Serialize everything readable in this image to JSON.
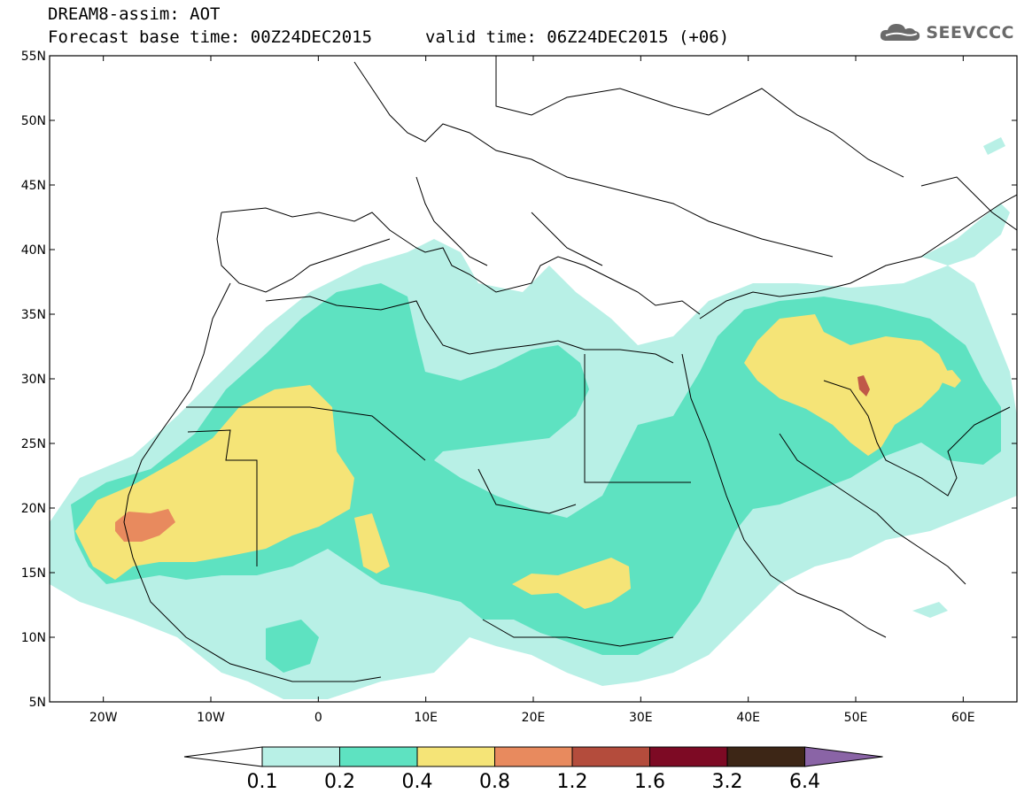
{
  "header": {
    "line1": "DREAM8-assim: AOT",
    "base_time": "Forecast base time: 00Z24DEC2015",
    "valid_time": "valid time: 06Z24DEC2015 (+06)"
  },
  "logo": {
    "text": "SEEVCCC",
    "icon": "cloud-icon"
  },
  "map": {
    "lon_range": [
      -25,
      65
    ],
    "lat_range": [
      5,
      55
    ],
    "lat_labels": [
      "55N",
      "50N",
      "45N",
      "40N",
      "35N",
      "30N",
      "25N",
      "20N",
      "15N",
      "10N",
      "5N"
    ],
    "lon_labels": [
      "20W",
      "10W",
      "0",
      "10E",
      "20E",
      "30E",
      "40E",
      "50E",
      "60E"
    ]
  },
  "legend": {
    "levels": [
      "0.1",
      "0.2",
      "0.4",
      "0.8",
      "1.2",
      "1.6",
      "3.2",
      "6.4"
    ],
    "colors": [
      "#b8f0e6",
      "#5ee2c1",
      "#f5e477",
      "#e88a5e",
      "#b44c3c",
      "#7d0a24",
      "#3d2616",
      "#8a64a6"
    ],
    "start_arrow_color": "#ffffff",
    "end_arrow_color": "#8a64a6"
  }
}
